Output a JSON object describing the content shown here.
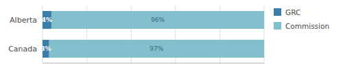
{
  "chart_data": {
    "type": "bar",
    "orientation": "horizontal",
    "stacked": true,
    "categories": [
      "Canada",
      "Alberta"
    ],
    "series": [
      {
        "name": "GRC",
        "color": "#3a7da8",
        "values": [
          3,
          4
        ],
        "value_labels": [
          "3%",
          "4%"
        ]
      },
      {
        "name": "Commission",
        "color": "#82bfcc",
        "values": [
          97,
          96
        ],
        "value_labels": [
          "97%",
          "96%"
        ]
      }
    ],
    "xlim": [
      0,
      100
    ],
    "xticks": [
      0,
      20,
      40,
      60,
      80,
      100
    ],
    "grid": true,
    "legend": "right",
    "data_labels": true,
    "tick_labels": "y"
  }
}
